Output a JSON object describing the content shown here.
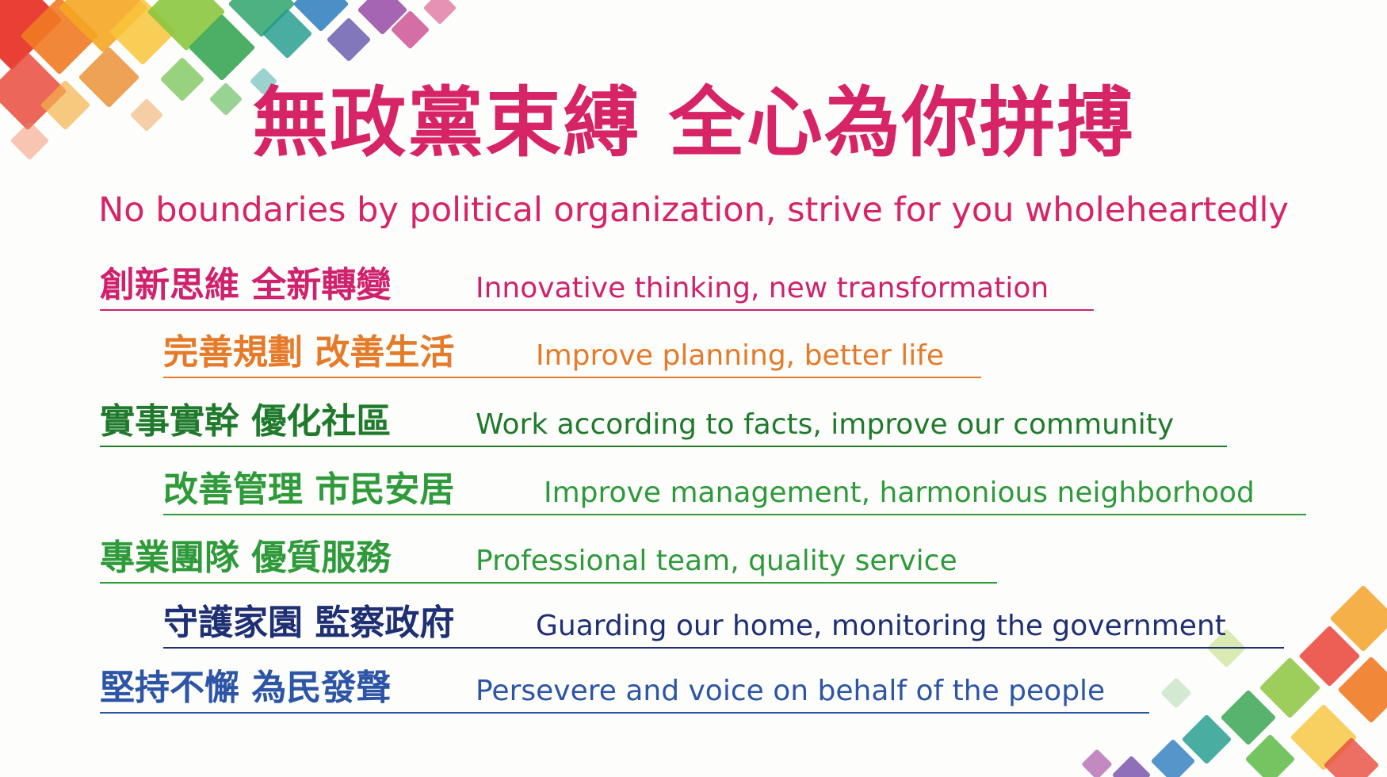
{
  "title": "無政黨束縛 全心為你拼搏",
  "subtitle": "No boundaries by political organization, strive for you wholeheartedly",
  "colors": {
    "title": "#d62466",
    "magenta": "#d0216d",
    "orange": "#e57a29",
    "dark_green": "#1f7a2c",
    "green": "#2e9a3a",
    "navy": "#1e2f73",
    "blue": "#2d55a6"
  },
  "lines": [
    {
      "zh": "創新思維 全新轉變",
      "en": "Innovative thinking, new transformation",
      "color": "#d0216d"
    },
    {
      "zh": "完善規劃 改善生活",
      "en": "Improve planning, better life",
      "color": "#e57a29"
    },
    {
      "zh": "實事實幹 優化社區",
      "en": "Work according to facts, improve our community",
      "color": "#1f7a2c"
    },
    {
      "zh": "改善管理 市民安居",
      "en": "Improve management, harmonious neighborhood",
      "color": "#2e9a3a"
    },
    {
      "zh": "專業團隊 優質服務",
      "en": "Professional team, quality service",
      "color": "#2e9a3a"
    },
    {
      "zh": "守護家園 監察政府",
      "en": "Guarding our home, monitoring the government",
      "color": "#1e2f73"
    },
    {
      "zh": "堅持不懈 為民發聲",
      "en": "Persevere and voice on behalf of the people",
      "color": "#2d55a6"
    }
  ]
}
